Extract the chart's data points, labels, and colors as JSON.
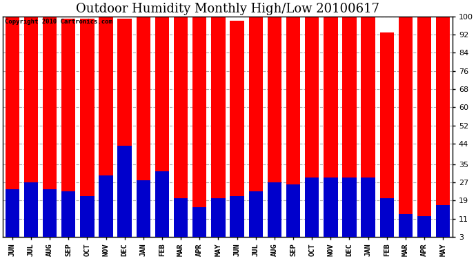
{
  "title": "Outdoor Humidity Monthly High/Low 20100617",
  "copyright": "Copyright 2010 Cartronics.com",
  "categories": [
    "JUN",
    "JUL",
    "AUG",
    "SEP",
    "OCT",
    "NOV",
    "DEC",
    "JAN",
    "FEB",
    "MAR",
    "APR",
    "MAY",
    "JUN",
    "JUL",
    "AUG",
    "SEP",
    "OCT",
    "NOV",
    "DEC",
    "JAN",
    "FEB",
    "MAR",
    "APR",
    "MAY"
  ],
  "highs": [
    100,
    100,
    100,
    99,
    99,
    100,
    99,
    100,
    100,
    100,
    100,
    100,
    98,
    100,
    100,
    100,
    100,
    100,
    100,
    100,
    93,
    100,
    100,
    100
  ],
  "lows": [
    24,
    27,
    24,
    23,
    21,
    30,
    43,
    28,
    32,
    20,
    16,
    20,
    21,
    23,
    27,
    26,
    29,
    29,
    29,
    29,
    20,
    13,
    12,
    17
  ],
  "high_color": "#ff0000",
  "low_color": "#0000cc",
  "bg_color": "#ffffff",
  "plot_bg_color": "#ffffff",
  "grid_color": "#aaaaaa",
  "title_fontsize": 13,
  "yticks": [
    3,
    11,
    19,
    27,
    35,
    44,
    52,
    60,
    68,
    76,
    84,
    92,
    100
  ],
  "ymin": 3,
  "ymax": 100,
  "bar_width": 0.75
}
